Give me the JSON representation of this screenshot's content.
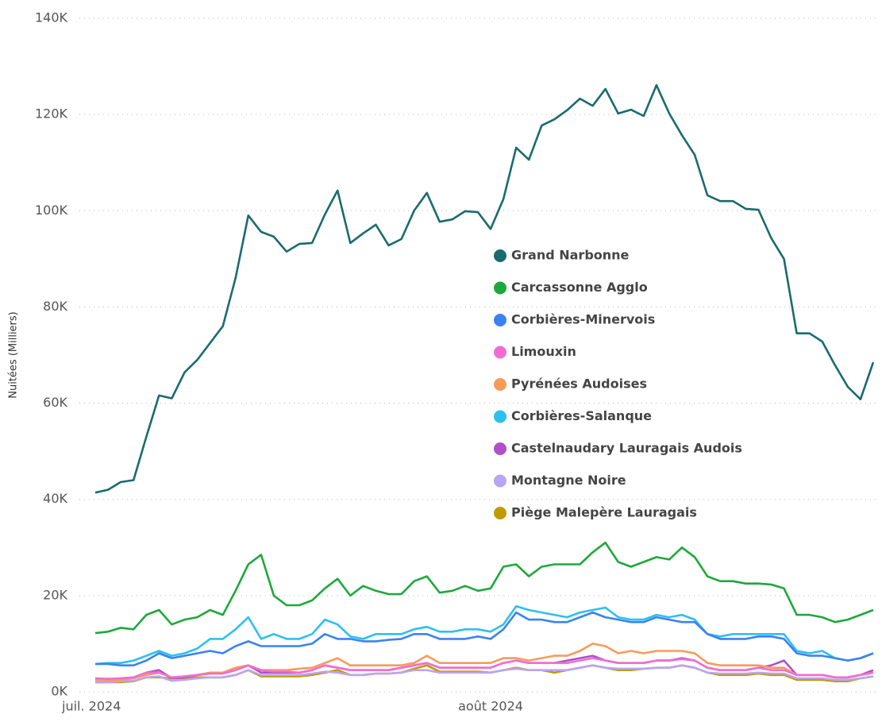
{
  "chart_data": {
    "type": "line",
    "y_axis_label": "Nuitées (Milliers)",
    "categories": [
      "juil. 2024",
      null,
      null,
      null,
      null,
      null,
      null,
      null,
      null,
      null,
      null,
      null,
      null,
      null,
      null,
      null,
      null,
      null,
      null,
      null,
      null,
      null,
      null,
      null,
      null,
      null,
      null,
      null,
      null,
      null,
      null,
      "août 2024",
      null,
      null,
      null,
      null,
      null,
      null,
      null,
      null,
      null,
      null,
      null,
      null,
      null,
      null,
      null,
      null,
      null,
      null,
      null,
      null,
      null,
      null,
      null,
      null,
      null,
      null,
      null,
      null,
      null,
      null
    ],
    "ylim": [
      0,
      140000
    ],
    "yticks": [
      {
        "value": 0,
        "label": "0K"
      },
      {
        "value": 20000,
        "label": "20K"
      },
      {
        "value": 40000,
        "label": "40K"
      },
      {
        "value": 60000,
        "label": "60K"
      },
      {
        "value": 80000,
        "label": "80K"
      },
      {
        "value": 100000,
        "label": "100K"
      },
      {
        "value": 120000,
        "label": "120K"
      },
      {
        "value": 140000,
        "label": "140K"
      }
    ],
    "grid": true,
    "legend_position": "center",
    "series": [
      {
        "name": "Grand Narbonne",
        "color": "#1a6b6e",
        "values": [
          41400,
          42000,
          43600,
          44000,
          53000,
          61600,
          61000,
          66400,
          69000,
          72500,
          76000,
          86000,
          99000,
          95600,
          94600,
          91500,
          93100,
          93300,
          99200,
          104200,
          93300,
          95300,
          97100,
          92800,
          94100,
          100000,
          103700,
          97700,
          98200,
          99900,
          99700,
          96200,
          102400,
          113100,
          110600,
          117700,
          119000,
          120900,
          123300,
          121800,
          125300,
          120200,
          121000,
          119700,
          126100,
          120200,
          115700,
          111600,
          103200,
          102000,
          102000,
          100400,
          100200,
          94300,
          90000,
          74500,
          74500,
          72800,
          67900,
          63400,
          60800,
          68500
        ]
      },
      {
        "name": "Carcassonne Agglo",
        "color": "#1ea83c",
        "values": [
          12200,
          12500,
          13300,
          13000,
          16000,
          17000,
          14000,
          15000,
          15500,
          17000,
          16000,
          21000,
          26500,
          28500,
          20000,
          18000,
          18000,
          19000,
          21500,
          23500,
          20000,
          22000,
          21000,
          20300,
          20300,
          23000,
          24000,
          20600,
          21000,
          22000,
          21000,
          21500,
          26000,
          26500,
          24000,
          26000,
          26500,
          26500,
          26500,
          29000,
          31000,
          27000,
          26000,
          27000,
          28000,
          27500,
          30000,
          28000,
          24000,
          23000,
          23000,
          22500,
          22500,
          22300,
          21500,
          16000,
          16000,
          15500,
          14500,
          15000,
          16000,
          17000
        ]
      },
      {
        "name": "Corbières-Minervois",
        "color": "#3b82f0",
        "values": [
          5800,
          5800,
          5500,
          5500,
          6500,
          8000,
          7000,
          7500,
          8000,
          8500,
          8000,
          9500,
          10500,
          9500,
          9500,
          9500,
          9500,
          10000,
          12000,
          11000,
          11000,
          10500,
          10500,
          10800,
          11000,
          12000,
          12000,
          11000,
          11000,
          11000,
          11500,
          11000,
          13000,
          16500,
          15000,
          15000,
          14500,
          14500,
          15500,
          16500,
          15500,
          15000,
          14500,
          14500,
          15500,
          15000,
          14500,
          14500,
          12000,
          11000,
          11000,
          11000,
          11500,
          11500,
          11000,
          8000,
          7500,
          7500,
          7000,
          6500,
          7000,
          8000
        ]
      },
      {
        "name": "Limouxin",
        "color": "#f06ed2",
        "values": [
          2800,
          2700,
          2800,
          3000,
          4000,
          4000,
          3000,
          3200,
          3500,
          3800,
          3800,
          4500,
          5500,
          4500,
          4200,
          4200,
          4000,
          4500,
          5500,
          5000,
          4500,
          4500,
          4500,
          4500,
          5000,
          5500,
          6000,
          5000,
          5000,
          5000,
          5000,
          5000,
          6000,
          6500,
          6000,
          6000,
          6000,
          6000,
          6500,
          7000,
          6500,
          6000,
          6000,
          6000,
          6500,
          6500,
          6800,
          6500,
          5000,
          4500,
          4500,
          4500,
          5000,
          4500,
          4500,
          3500,
          3500,
          3500,
          3000,
          3000,
          3500,
          4000
        ]
      },
      {
        "name": "Pyrénées Audoises",
        "color": "#f79b5a",
        "values": [
          2500,
          2300,
          2500,
          2800,
          3500,
          4000,
          3000,
          3200,
          3500,
          4000,
          4000,
          5000,
          5500,
          4500,
          4500,
          4500,
          4800,
          5000,
          6000,
          7000,
          5500,
          5500,
          5500,
          5500,
          5500,
          6000,
          7500,
          6000,
          6000,
          6000,
          6000,
          6000,
          7000,
          7000,
          6500,
          7000,
          7500,
          7500,
          8500,
          10000,
          9500,
          8000,
          8500,
          8000,
          8500,
          8500,
          8500,
          8000,
          6000,
          5500,
          5500,
          5500,
          5500,
          5000,
          5000,
          3500,
          3500,
          3500,
          3000,
          3000,
          3500,
          4000
        ]
      },
      {
        "name": "Corbières-Salanque",
        "color": "#2cc0ef",
        "values": [
          5800,
          6000,
          6000,
          6500,
          7500,
          8500,
          7500,
          8000,
          9000,
          11000,
          11000,
          13000,
          15500,
          11000,
          12000,
          11000,
          11000,
          12000,
          15000,
          14000,
          11500,
          11000,
          12000,
          12000,
          12000,
          13000,
          13500,
          12500,
          12500,
          13000,
          13000,
          12500,
          14000,
          17800,
          17000,
          16500,
          16000,
          15500,
          16500,
          17000,
          17500,
          15500,
          15000,
          15000,
          16000,
          15500,
          16000,
          15000,
          12000,
          11500,
          12000,
          12000,
          12000,
          12000,
          12000,
          8500,
          8000,
          8500,
          7000,
          6500,
          7000,
          8000
        ]
      },
      {
        "name": "Castelnaudary Lauragais Audois",
        "color": "#b04fc8",
        "values": [
          2800,
          2600,
          2800,
          3000,
          4000,
          4500,
          2800,
          3000,
          3500,
          3800,
          3800,
          4500,
          5500,
          4000,
          4000,
          4000,
          4000,
          4500,
          5500,
          5000,
          4500,
          4500,
          4500,
          4500,
          5000,
          5500,
          6000,
          5000,
          5000,
          5000,
          5000,
          5000,
          6000,
          6500,
          6000,
          6000,
          6000,
          6500,
          7000,
          7500,
          6500,
          6000,
          6000,
          6000,
          6500,
          6500,
          7000,
          6500,
          5000,
          4500,
          4500,
          4500,
          5000,
          5500,
          6500,
          3500,
          3500,
          3500,
          3000,
          3000,
          3500,
          4500
        ]
      },
      {
        "name": "Montagne Noire",
        "color": "#b9a5f5",
        "values": [
          2000,
          2000,
          2200,
          2300,
          3000,
          3200,
          2300,
          2500,
          2800,
          3000,
          3000,
          3500,
          4500,
          3500,
          3500,
          3500,
          3500,
          3800,
          4200,
          4000,
          3500,
          3500,
          3800,
          3800,
          4000,
          4500,
          4500,
          4000,
          4000,
          4000,
          4000,
          4000,
          4500,
          4800,
          4500,
          4500,
          4500,
          4500,
          5000,
          5500,
          5000,
          4800,
          4800,
          4800,
          5000,
          5000,
          5500,
          5000,
          4000,
          3800,
          3800,
          3800,
          4000,
          3800,
          3800,
          2800,
          2800,
          2800,
          2500,
          2500,
          2800,
          3200
        ]
      },
      {
        "name": "Piège Malepère Lauragais",
        "color": "#c09a00",
        "values": [
          2000,
          2000,
          2000,
          2200,
          3000,
          3000,
          2800,
          2800,
          3000,
          3000,
          3000,
          3500,
          4500,
          3200,
          3200,
          3200,
          3200,
          3500,
          4000,
          4500,
          3500,
          3500,
          3800,
          3800,
          4000,
          4800,
          5500,
          4200,
          4200,
          4200,
          4200,
          4000,
          4500,
          5000,
          4500,
          4500,
          4000,
          4500,
          5000,
          5500,
          5000,
          4500,
          4500,
          4800,
          5000,
          5000,
          5500,
          5000,
          4000,
          3500,
          3500,
          3500,
          3800,
          3500,
          3500,
          2500,
          2500,
          2500,
          2200,
          2200,
          2800,
          3200
        ]
      }
    ]
  }
}
